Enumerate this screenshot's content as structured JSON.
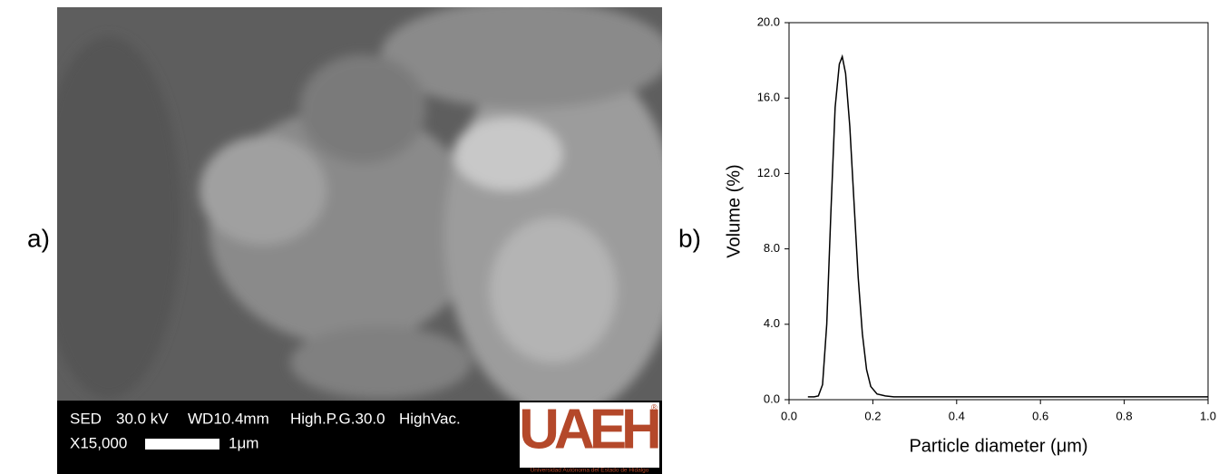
{
  "panel_labels": [
    "a)",
    "b)"
  ],
  "sem_image": {
    "info_row_1": [
      "SED",
      "30.0 kV",
      "WD10.4mm",
      "High.P.G.30.0",
      "HighVac."
    ],
    "magnification": "X15,000",
    "scale_bar": "1μm",
    "logo": {
      "text": "UAEH",
      "mark": "®",
      "caption": "Universidad Autónoma del Estado de Hidalgo"
    }
  },
  "chart_data": {
    "type": "line",
    "x_label": "Particle diameter (μm)",
    "y_label": "Volume (%)",
    "x": [
      0.045,
      0.06,
      0.07,
      0.08,
      0.09,
      0.1,
      0.11,
      0.12,
      0.127,
      0.135,
      0.145,
      0.155,
      0.165,
      0.175,
      0.185,
      0.195,
      0.21,
      0.23,
      0.25,
      0.3,
      0.5,
      0.7,
      1.0
    ],
    "series": [
      {
        "color": "#000000",
        "values": [
          0.15,
          0.15,
          0.2,
          0.8,
          4.0,
          10.0,
          15.5,
          17.8,
          18.2,
          17.3,
          14.5,
          10.5,
          6.5,
          3.5,
          1.6,
          0.7,
          0.3,
          0.2,
          0.15,
          0.15,
          0.15,
          0.15,
          0.15
        ]
      }
    ],
    "xlim": [
      0,
      1
    ],
    "ylim": [
      0,
      20
    ],
    "xticks": [
      {
        "value": 0,
        "label": "0.0"
      },
      0.2,
      0.4,
      0.6,
      0.8,
      {
        "value": 1,
        "label": "1.0"
      }
    ],
    "yticks": [
      {
        "value": 0,
        "label": "0.0"
      },
      {
        "value": 4,
        "label": "4.0"
      },
      {
        "value": 8,
        "label": "8.0"
      },
      {
        "value": 12,
        "label": "12.0"
      },
      {
        "value": 16,
        "label": "16.0"
      },
      {
        "value": 20,
        "label": "20.0"
      }
    ]
  }
}
